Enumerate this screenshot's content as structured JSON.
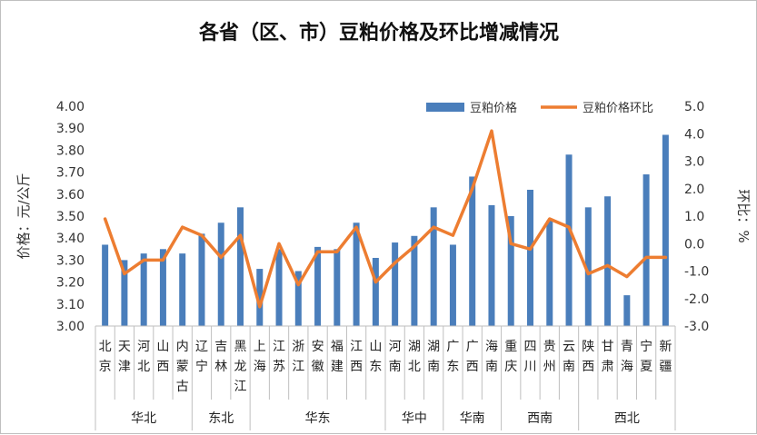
{
  "chart_data": {
    "type": "bar",
    "title": "各省（区、市）豆粕价格及环比增减情况",
    "ylabel_left": "价格：元/公斤",
    "ylabel_right": "环比：%",
    "ylim_left": [
      3.0,
      4.0
    ],
    "ylim_right": [
      -3.0,
      5.0
    ],
    "left_ticks": [
      "4.00",
      "3.90",
      "3.80",
      "3.70",
      "3.60",
      "3.50",
      "3.40",
      "3.30",
      "3.20",
      "3.10",
      "3.00"
    ],
    "right_ticks": [
      "5.0",
      "4.0",
      "3.0",
      "2.0",
      "1.0",
      "0.0",
      "-1.0",
      "-2.0",
      "-3.0"
    ],
    "legend_position": "top-right",
    "colors": {
      "bar": "#4a7ebb",
      "line": "#ed7d31"
    },
    "categories": [
      "北京",
      "天津",
      "河北",
      "山西",
      "内蒙古",
      "辽宁",
      "吉林",
      "黑龙江",
      "上海",
      "江苏",
      "浙江",
      "安徽",
      "福建",
      "江西",
      "山东",
      "河南",
      "湖北",
      "湖南",
      "广东",
      "广西",
      "海南",
      "重庆",
      "四川",
      "贵州",
      "云南",
      "陕西",
      "甘肃",
      "青海",
      "宁夏",
      "新疆"
    ],
    "regions": [
      {
        "name": "华北",
        "count": 5
      },
      {
        "name": "东北",
        "count": 3
      },
      {
        "name": "华东",
        "count": 7
      },
      {
        "name": "华中",
        "count": 3
      },
      {
        "name": "华南",
        "count": 3
      },
      {
        "name": "西南",
        "count": 4
      },
      {
        "name": "西北",
        "count": 5
      }
    ],
    "series": [
      {
        "name": "豆粕价格",
        "type": "bar",
        "axis": "left",
        "values": [
          3.37,
          3.3,
          3.33,
          3.35,
          3.33,
          3.42,
          3.47,
          3.54,
          3.26,
          3.35,
          3.25,
          3.36,
          3.35,
          3.47,
          3.31,
          3.38,
          3.41,
          3.54,
          3.37,
          3.68,
          3.55,
          3.5,
          3.62,
          3.48,
          3.78,
          3.54,
          3.59,
          3.14,
          3.69,
          3.87
        ]
      },
      {
        "name": "豆粕价格环比",
        "type": "line",
        "axis": "right",
        "values": [
          0.9,
          -1.1,
          -0.6,
          -0.6,
          0.6,
          0.3,
          -0.5,
          0.3,
          -2.3,
          0.0,
          -1.5,
          -0.3,
          -0.3,
          0.6,
          -1.4,
          -0.7,
          -0.1,
          0.6,
          0.3,
          2.0,
          4.1,
          0.0,
          -0.2,
          0.9,
          0.6,
          -1.1,
          -0.8,
          -1.2,
          -0.5,
          -0.5
        ]
      }
    ]
  }
}
